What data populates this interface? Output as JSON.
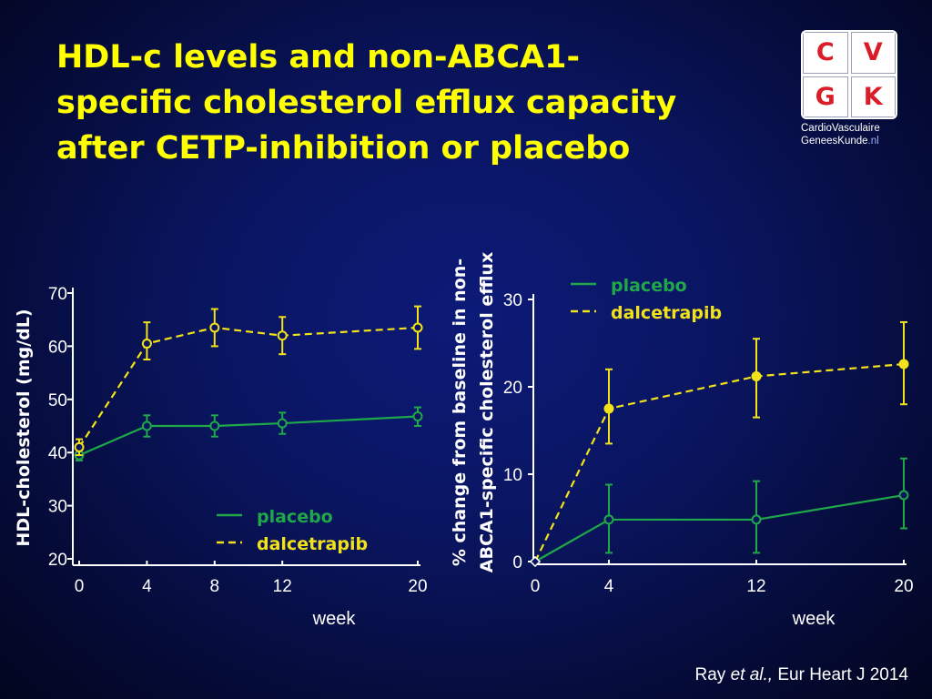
{
  "slide": {
    "title_lines": [
      "HDL-c levels and non-ABCA1-",
      "specific cholesterol efflux capacity",
      "after CETP-inhibition or placebo"
    ],
    "citation": {
      "prefix": "Ray ",
      "italic": "et al.,",
      "suffix": "  Eur Heart J 2014"
    }
  },
  "logo": {
    "letters": [
      "C",
      "V",
      "G",
      "K"
    ],
    "line1": "CardioVasculaire",
    "line2_main": "GeneesKunde",
    "line2_tld": ".nl"
  },
  "colors": {
    "title": "#ffff00",
    "placebo": "#1fa84a",
    "dalcetrapib": "#f2e21a",
    "axis": "#ffffff",
    "logo_letter": "#d91e2a"
  },
  "chart_data": [
    {
      "type": "line",
      "ylabel": "HDL-cholesterol (mg/dL)",
      "xlabel": "week",
      "xlim": [
        0,
        20
      ],
      "ylim": [
        20,
        70
      ],
      "xticks": [
        0,
        4,
        8,
        12,
        20
      ],
      "yticks": [
        20,
        30,
        40,
        50,
        60,
        70
      ],
      "legend_position": "bottom-right",
      "series": [
        {
          "name": "placebo",
          "style": "solid",
          "color": "#1fa84a",
          "points": [
            {
              "x": 0,
              "y": 39.5,
              "lo": 38.5,
              "hi": 40.5
            },
            {
              "x": 4,
              "y": 45,
              "lo": 43,
              "hi": 47
            },
            {
              "x": 8,
              "y": 45,
              "lo": 43,
              "hi": 47
            },
            {
              "x": 12,
              "y": 45.5,
              "lo": 43.5,
              "hi": 47.5
            },
            {
              "x": 20,
              "y": 46.8,
              "lo": 45,
              "hi": 48.5
            }
          ]
        },
        {
          "name": "dalcetrapib",
          "style": "dashed",
          "color": "#f2e21a",
          "points": [
            {
              "x": 0,
              "y": 41,
              "lo": 39.5,
              "hi": 42.5
            },
            {
              "x": 4,
              "y": 60.5,
              "lo": 57.5,
              "hi": 64.5
            },
            {
              "x": 8,
              "y": 63.5,
              "lo": 60,
              "hi": 67
            },
            {
              "x": 12,
              "y": 62,
              "lo": 58.5,
              "hi": 65.5
            },
            {
              "x": 20,
              "y": 63.5,
              "lo": 59.5,
              "hi": 67.5
            }
          ]
        }
      ]
    },
    {
      "type": "line",
      "ylabel_lines": [
        "% change from baseline in non-",
        "ABCA1-specific cholesterol efflux"
      ],
      "xlabel": "week",
      "xlim": [
        0,
        20
      ],
      "ylim": [
        0,
        30
      ],
      "xticks": [
        0,
        4,
        12,
        20
      ],
      "yticks": [
        0,
        10,
        20,
        30
      ],
      "legend_position": "top-left",
      "series": [
        {
          "name": "placebo",
          "style": "solid",
          "color": "#1fa84a",
          "points": [
            {
              "x": 0,
              "y": 0
            },
            {
              "x": 4,
              "y": 4.8,
              "lo": 1,
              "hi": 8.8
            },
            {
              "x": 12,
              "y": 4.8,
              "lo": 1,
              "hi": 9.2
            },
            {
              "x": 20,
              "y": 7.6,
              "lo": 3.8,
              "hi": 11.8
            }
          ]
        },
        {
          "name": "dalcetrapib",
          "style": "dashed",
          "color": "#f2e21a",
          "points": [
            {
              "x": 0,
              "y": 0
            },
            {
              "x": 4,
              "y": 17.5,
              "lo": 13.5,
              "hi": 22
            },
            {
              "x": 12,
              "y": 21.2,
              "lo": 16.5,
              "hi": 25.5
            },
            {
              "x": 20,
              "y": 22.6,
              "lo": 18,
              "hi": 27.4
            }
          ]
        }
      ]
    }
  ]
}
